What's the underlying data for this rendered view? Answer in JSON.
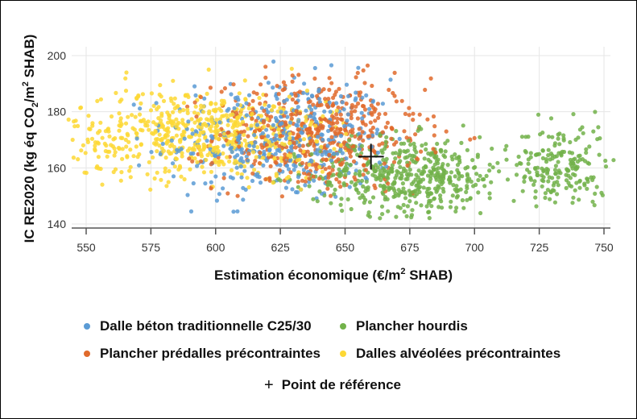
{
  "chart_data": {
    "type": "scatter",
    "title": "",
    "xlabel": "Estimation économique (€/m² SHAB)",
    "xlabel_parts": {
      "main": "Estimation économique (€/m",
      "sup": "2",
      "tail": " SHAB)"
    },
    "ylabel": "IC RE2020 (kg éq CO2/m² SHAB)",
    "ylabel_parts": {
      "a": "IC RE2020 (kg éq CO",
      "sub": "2",
      "b": "/m",
      "sup": "2",
      "c": " SHAB)"
    },
    "xlim": [
      543,
      754
    ],
    "ylim": [
      138,
      203
    ],
    "x_ticks": [
      550,
      575,
      600,
      625,
      650,
      675,
      700,
      725,
      750
    ],
    "y_ticks": [
      140,
      160,
      180,
      200
    ],
    "grid": true,
    "legend_position": "bottom",
    "series": [
      {
        "name": "Dalle béton traditionnelle C25/30",
        "color": "#5b9bd5",
        "clusters": [
          {
            "n": 420,
            "x_mean": 625,
            "x_sd": 22,
            "y_mean": 170,
            "y_sd": 11,
            "x_range": [
              560,
              675
            ],
            "y_range": [
              143,
              203
            ]
          }
        ]
      },
      {
        "name": "Plancher prédalles précontraintes",
        "color": "#e06a2c",
        "clusters": [
          {
            "n": 520,
            "x_mean": 640,
            "x_sd": 20,
            "y_mean": 172,
            "y_sd": 10,
            "x_range": [
              585,
              700
            ],
            "y_range": [
              148,
              202
            ]
          }
        ]
      },
      {
        "name": "Plancher hourdis",
        "color": "#72b24a",
        "clusters": [
          {
            "n": 480,
            "x_mean": 675,
            "x_sd": 19,
            "y_mean": 157,
            "y_sd": 7,
            "x_range": [
              620,
              715
            ],
            "y_range": [
              142,
              178
            ]
          },
          {
            "n": 190,
            "x_mean": 733,
            "x_sd": 9,
            "y_mean": 160,
            "y_sd": 8,
            "x_range": [
              714,
              754
            ],
            "y_range": [
              146,
              181
            ]
          }
        ]
      },
      {
        "name": "Dalles alvéolées précontraintes",
        "color": "#fdd835",
        "clusters": [
          {
            "n": 620,
            "x_mean": 595,
            "x_sd": 26,
            "y_mean": 172,
            "y_sd": 8,
            "x_range": [
              543,
              655
            ],
            "y_range": [
              152,
              198
            ]
          }
        ]
      }
    ],
    "reference_point": {
      "name": "Point de référence",
      "x": 660,
      "y": 164,
      "marker": "+"
    }
  },
  "legend": {
    "items": [
      {
        "label": "Dalle béton traditionnelle C25/30",
        "color": "#5b9bd5"
      },
      {
        "label": "Plancher hourdis",
        "color": "#72b24a"
      },
      {
        "label": "Plancher prédalles précontraintes",
        "color": "#e06a2c"
      },
      {
        "label": "Dalles alvéolées précontraintes",
        "color": "#fdd835"
      }
    ],
    "reference": {
      "symbol": "+",
      "label": "Point de référence"
    }
  }
}
